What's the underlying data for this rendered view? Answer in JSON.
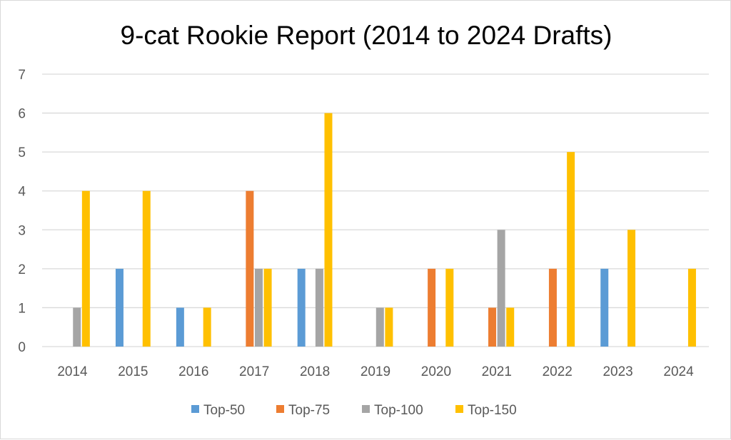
{
  "chart_data": {
    "type": "bar",
    "title": "9-cat Rookie Report (2014 to 2024 Drafts)",
    "xlabel": "",
    "ylabel": "",
    "categories": [
      "2014",
      "2015",
      "2016",
      "2017",
      "2018",
      "2019",
      "2020",
      "2021",
      "2022",
      "2023",
      "2024"
    ],
    "ylim": [
      0,
      7
    ],
    "yticks": [
      "0",
      "1",
      "2",
      "3",
      "4",
      "5",
      "6",
      "7"
    ],
    "grid": true,
    "legend_position": "bottom",
    "series": [
      {
        "name": "Top-50",
        "color": "#5b9bd5",
        "values": [
          0,
          2,
          1,
          0,
          2,
          0,
          0,
          0,
          0,
          2,
          0
        ]
      },
      {
        "name": "Top-75",
        "color": "#ed7d31",
        "values": [
          0,
          0,
          0,
          4,
          0,
          0,
          2,
          1,
          2,
          0,
          0
        ]
      },
      {
        "name": "Top-100",
        "color": "#a5a5a5",
        "values": [
          1,
          0,
          0,
          2,
          2,
          1,
          0,
          3,
          0,
          0,
          0
        ]
      },
      {
        "name": "Top-150",
        "color": "#ffc000",
        "values": [
          4,
          4,
          1,
          2,
          6,
          1,
          2,
          1,
          5,
          3,
          2
        ]
      }
    ]
  }
}
